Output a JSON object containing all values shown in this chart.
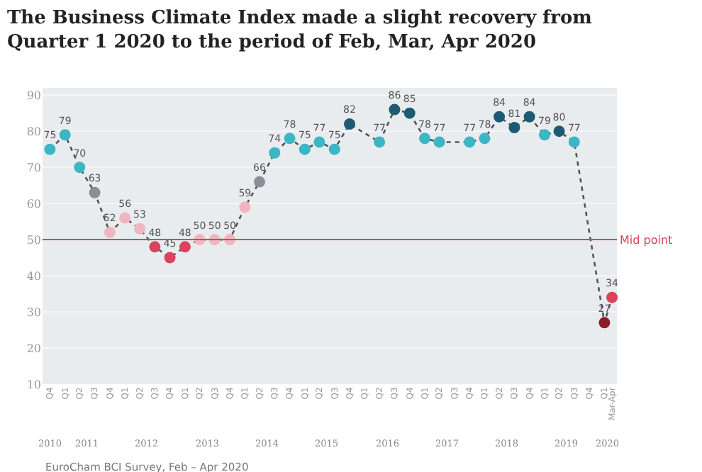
{
  "chart_data": {
    "type": "line",
    "title": "The Business Climate Index made a slight recovery from Quarter 1 2020 to the period of Feb, Mar, Apr 2020",
    "series": [
      {
        "color": "#555555",
        "line_style": "dotted",
        "marker": "circle",
        "data_labels": true,
        "x": [
          "2010-11-15",
          "2011-02-15",
          "2011-05-15",
          "2011-08-15",
          "2011-11-15",
          "2012-02-15",
          "2012-05-15",
          "2012-08-15",
          "2012-11-15",
          "2013-02-15",
          "2013-05-15",
          "2013-08-15",
          "2013-11-15",
          "2014-02-15",
          "2014-05-15",
          "2014-08-15",
          "2014-11-15",
          "2015-02-15",
          "2015-05-15",
          "2015-08-15",
          "2015-11-15",
          "2016-05-15",
          "2016-08-15",
          "2016-11-15",
          "2017-02-15",
          "2017-05-15",
          "2017-11-15",
          "2018-02-15",
          "2018-05-15",
          "2018-08-15",
          "2018-11-15",
          "2019-02-15",
          "2019-05-15",
          "2019-08-15",
          "2020-02-15",
          "2020-04-01"
        ],
        "values": [
          75,
          79,
          70,
          63,
          52,
          56,
          53,
          48,
          45,
          48,
          50,
          50,
          50,
          59,
          66,
          74,
          78,
          75,
          77,
          75,
          82,
          77,
          86,
          85,
          78,
          77,
          77,
          78,
          84,
          81,
          84,
          79,
          80,
          77,
          27,
          34
        ],
        "colors": [
          "#3bb6c4",
          "#3bb6c4",
          "#3bb6c4",
          "#8a8f96",
          "#f0b6c0",
          "#f0b6c0",
          "#f0b6c0",
          "#d9445a",
          "#d9445a",
          "#d9445a",
          "#f0b6c0",
          "#f0b6c0",
          "#f0b6c0",
          "#f0b6c0",
          "#8a8f96",
          "#3bb6c4",
          "#3bb6c4",
          "#3bb6c4",
          "#3bb6c4",
          "#3bb6c4",
          "#1f5a73",
          "#3bb6c4",
          "#1f5a73",
          "#1f5a73",
          "#3bb6c4",
          "#3bb6c4",
          "#3bb6c4",
          "#3bb6c4",
          "#1f5a73",
          "#1f5a73",
          "#1f5a73",
          "#3bb6c4",
          "#1f5a73",
          "#3bb6c4",
          "#8b1a2a",
          "#d9445a"
        ]
      }
    ],
    "xlim": [
      "2010-10-01",
      "2020-05-01"
    ],
    "xticks": [
      {
        "value": "2010-11-15",
        "label": "Q4"
      },
      {
        "value": "2011-02-15",
        "label": "Q1"
      },
      {
        "value": "2011-05-15",
        "label": "Q2"
      },
      {
        "value": "2011-08-15",
        "label": "Q3"
      },
      {
        "value": "2011-11-15",
        "label": "Q4"
      },
      {
        "value": "2012-02-15",
        "label": "Q1"
      },
      {
        "value": "2012-05-15",
        "label": "Q2"
      },
      {
        "value": "2012-08-15",
        "label": "Q3"
      },
      {
        "value": "2012-11-15",
        "label": "Q4"
      },
      {
        "value": "2013-02-15",
        "label": "Q1"
      },
      {
        "value": "2013-05-15",
        "label": "Q2"
      },
      {
        "value": "2013-08-15",
        "label": "Q3"
      },
      {
        "value": "2013-11-15",
        "label": "Q4"
      },
      {
        "value": "2014-02-15",
        "label": "Q1"
      },
      {
        "value": "2014-05-15",
        "label": "Q2"
      },
      {
        "value": "2014-08-15",
        "label": "Q3"
      },
      {
        "value": "2014-11-15",
        "label": "Q4"
      },
      {
        "value": "2015-02-15",
        "label": "Q1"
      },
      {
        "value": "2015-05-15",
        "label": "Q2"
      },
      {
        "value": "2015-08-15",
        "label": "Q3"
      },
      {
        "value": "2015-11-15",
        "label": "Q4"
      },
      {
        "value": "2016-02-15",
        "label": "Q1"
      },
      {
        "value": "2016-05-15",
        "label": "Q2"
      },
      {
        "value": "2016-08-15",
        "label": "Q3"
      },
      {
        "value": "2016-11-15",
        "label": "Q4"
      },
      {
        "value": "2017-02-15",
        "label": "Q1"
      },
      {
        "value": "2017-05-15",
        "label": "Q2"
      },
      {
        "value": "2017-08-15",
        "label": "Q3"
      },
      {
        "value": "2017-11-15",
        "label": "Q4"
      },
      {
        "value": "2018-02-15",
        "label": "Q1"
      },
      {
        "value": "2018-05-15",
        "label": "Q2"
      },
      {
        "value": "2018-08-15",
        "label": "Q3"
      },
      {
        "value": "2018-11-15",
        "label": "Q4"
      },
      {
        "value": "2019-02-15",
        "label": "Q1"
      },
      {
        "value": "2019-05-15",
        "label": "Q2"
      },
      {
        "value": "2019-08-15",
        "label": "Q3"
      },
      {
        "value": "2019-11-15",
        "label": "Q4"
      },
      {
        "value": "2020-02-15",
        "label": "Q1"
      },
      {
        "value": "2020-04-01",
        "label": "Mar-Apr"
      }
    ],
    "ylim": [
      10,
      92
    ],
    "yticks": [
      10,
      20,
      30,
      40,
      50,
      60,
      70,
      80,
      90
    ],
    "grid": "y",
    "ref_lines": [
      {
        "axis": "y",
        "value": 50,
        "label": "Mid point",
        "color": "#d9445a"
      }
    ],
    "x2lim": [
      "2010-10-01",
      "2020-05-01"
    ],
    "x2ticks": [
      {
        "value": "2010-11-15",
        "label": "2010"
      },
      {
        "value": "2011-07-01",
        "label": "2011"
      },
      {
        "value": "2012-07-01",
        "label": "2012"
      },
      {
        "value": "2013-07-01",
        "label": "2013"
      },
      {
        "value": "2014-07-01",
        "label": "2014"
      },
      {
        "value": "2015-07-01",
        "label": "2015"
      },
      {
        "value": "2016-07-01",
        "label": "2016"
      },
      {
        "value": "2017-07-01",
        "label": "2017"
      },
      {
        "value": "2018-07-01",
        "label": "2018"
      },
      {
        "value": "2019-07-01",
        "label": "2019"
      },
      {
        "value": "2020-03-08",
        "label": "2020"
      }
    ],
    "annotations": [
      "EuroCham BCI Survey, Feb – Apr 2020"
    ]
  }
}
